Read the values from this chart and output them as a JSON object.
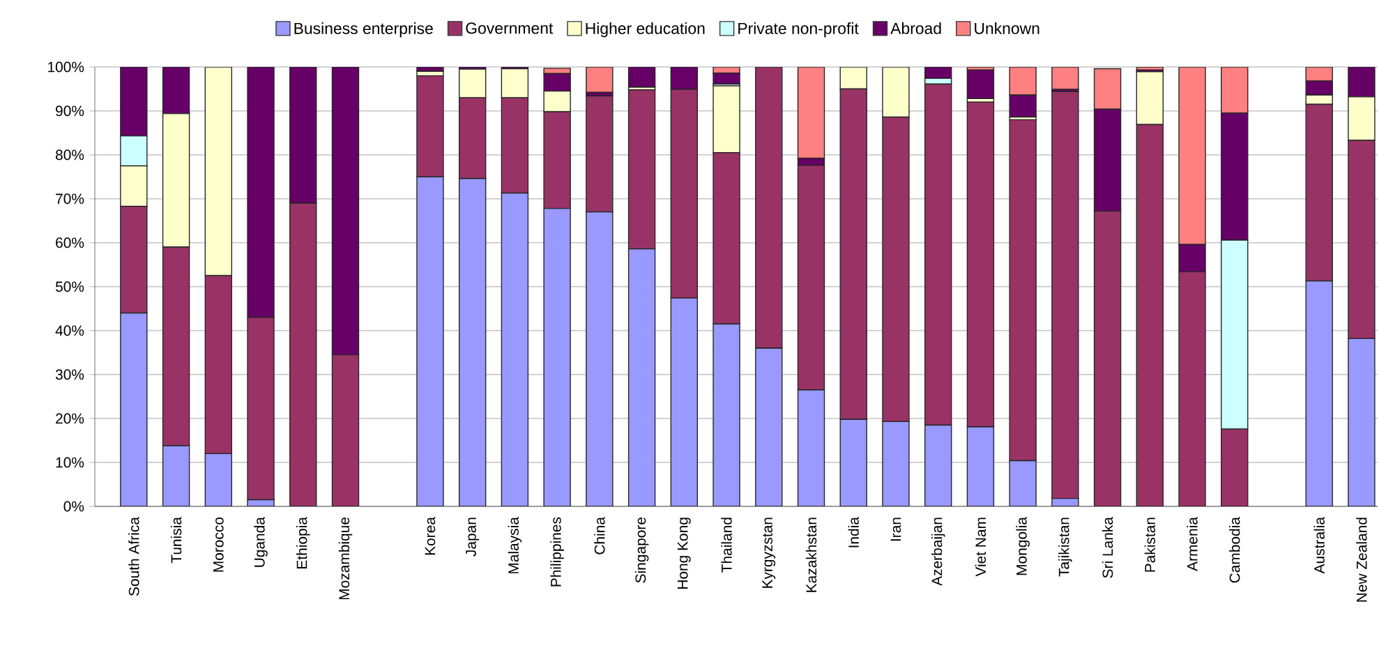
{
  "chart_data": {
    "type": "bar",
    "stacked": true,
    "categories": [
      "South Africa",
      "Tunisia",
      "Morocco",
      "Uganda",
      "Ethiopia",
      "Mozambique",
      null,
      "Korea",
      "Japan",
      "Malaysia",
      "Philippines",
      "China",
      "Singapore",
      "Hong Kong",
      "Thailand",
      "Kyrgyzstan",
      "Kazakhstan",
      "India",
      "Iran",
      "Azerbaijan",
      "Viet Nam",
      "Mongolia",
      "Tajikistan",
      "Sri Lanka",
      "Pakistan",
      "Armenia",
      "Cambodia",
      null,
      "Australia",
      "New Zealand"
    ],
    "series": [
      {
        "name": "Business enterprise",
        "color": "#9999ff",
        "values": [
          44,
          13.8,
          12,
          1.5,
          0,
          0,
          null,
          75,
          74.6,
          71.3,
          67.8,
          67,
          58.6,
          47.4,
          41.5,
          36,
          26.5,
          19.8,
          19.3,
          18.5,
          18.1,
          10.4,
          1.8,
          null,
          0,
          0,
          0,
          null,
          51.3,
          38.2
        ]
      },
      {
        "name": "Government",
        "color": "#993366",
        "values": [
          24.3,
          45.2,
          40.5,
          41.5,
          69,
          34.5,
          null,
          23,
          18.4,
          21.7,
          22,
          26.4,
          36.2,
          47.5,
          39,
          64,
          51.1,
          75.2,
          69.3,
          77.6,
          73.9,
          77.6,
          92.6,
          67.2,
          86.9,
          53.4,
          17.6,
          null,
          40.2,
          45.1
        ]
      },
      {
        "name": "Higher education",
        "color": "#ffffcc",
        "values": [
          9.2,
          30.4,
          47.5,
          0,
          0,
          0,
          null,
          1,
          6.5,
          6.6,
          4.7,
          0,
          0.6,
          0,
          15.2,
          0,
          0,
          5,
          11.4,
          0,
          0.8,
          0.6,
          0,
          0,
          12,
          0,
          0,
          null,
          2.1,
          9.9
        ]
      },
      {
        "name": "Private non-profit",
        "color": "#ccffff",
        "values": [
          6.8,
          0,
          0,
          0,
          0,
          0,
          null,
          0,
          0,
          0,
          null,
          0,
          0,
          0,
          0.4,
          0,
          0,
          0,
          0,
          1.3,
          0,
          0,
          0,
          0,
          0,
          0,
          43,
          null,
          0,
          0
        ]
      },
      {
        "name": "Abroad",
        "color": "#660066",
        "values": [
          15.7,
          10.6,
          0,
          57,
          31,
          65.5,
          null,
          1,
          0.5,
          0.4,
          4,
          0.8,
          4.6,
          5.1,
          2.5,
          0,
          1.6,
          0,
          0,
          2.6,
          6.5,
          5,
          0.5,
          23.2,
          0.4,
          6.2,
          28.9,
          null,
          3.2,
          6.8
        ]
      },
      {
        "name": "Unknown",
        "color": "#ff8080",
        "values": [
          0,
          0,
          0,
          0,
          0,
          0,
          null,
          0,
          0,
          0,
          1.2,
          5.8,
          0,
          0,
          1.4,
          0,
          20.8,
          0,
          0,
          0,
          0.7,
          6.4,
          5.1,
          9.2,
          0.7,
          40.4,
          10.5,
          null,
          3.2,
          0
        ]
      }
    ],
    "ylim": [
      0,
      100
    ],
    "yticks": [
      {
        "value": 0,
        "label": "0%"
      },
      {
        "value": 10,
        "label": "10%"
      },
      {
        "value": 20,
        "label": "20%"
      },
      {
        "value": 30,
        "label": "30%"
      },
      {
        "value": 40,
        "label": "40%"
      },
      {
        "value": 50,
        "label": "50%"
      },
      {
        "value": 60,
        "label": "60%"
      },
      {
        "value": 70,
        "label": "70%"
      },
      {
        "value": 80,
        "label": "80%"
      },
      {
        "value": 90,
        "label": "90%"
      },
      {
        "value": 100,
        "label": "100%"
      }
    ],
    "grid": "y",
    "legend": "top"
  }
}
